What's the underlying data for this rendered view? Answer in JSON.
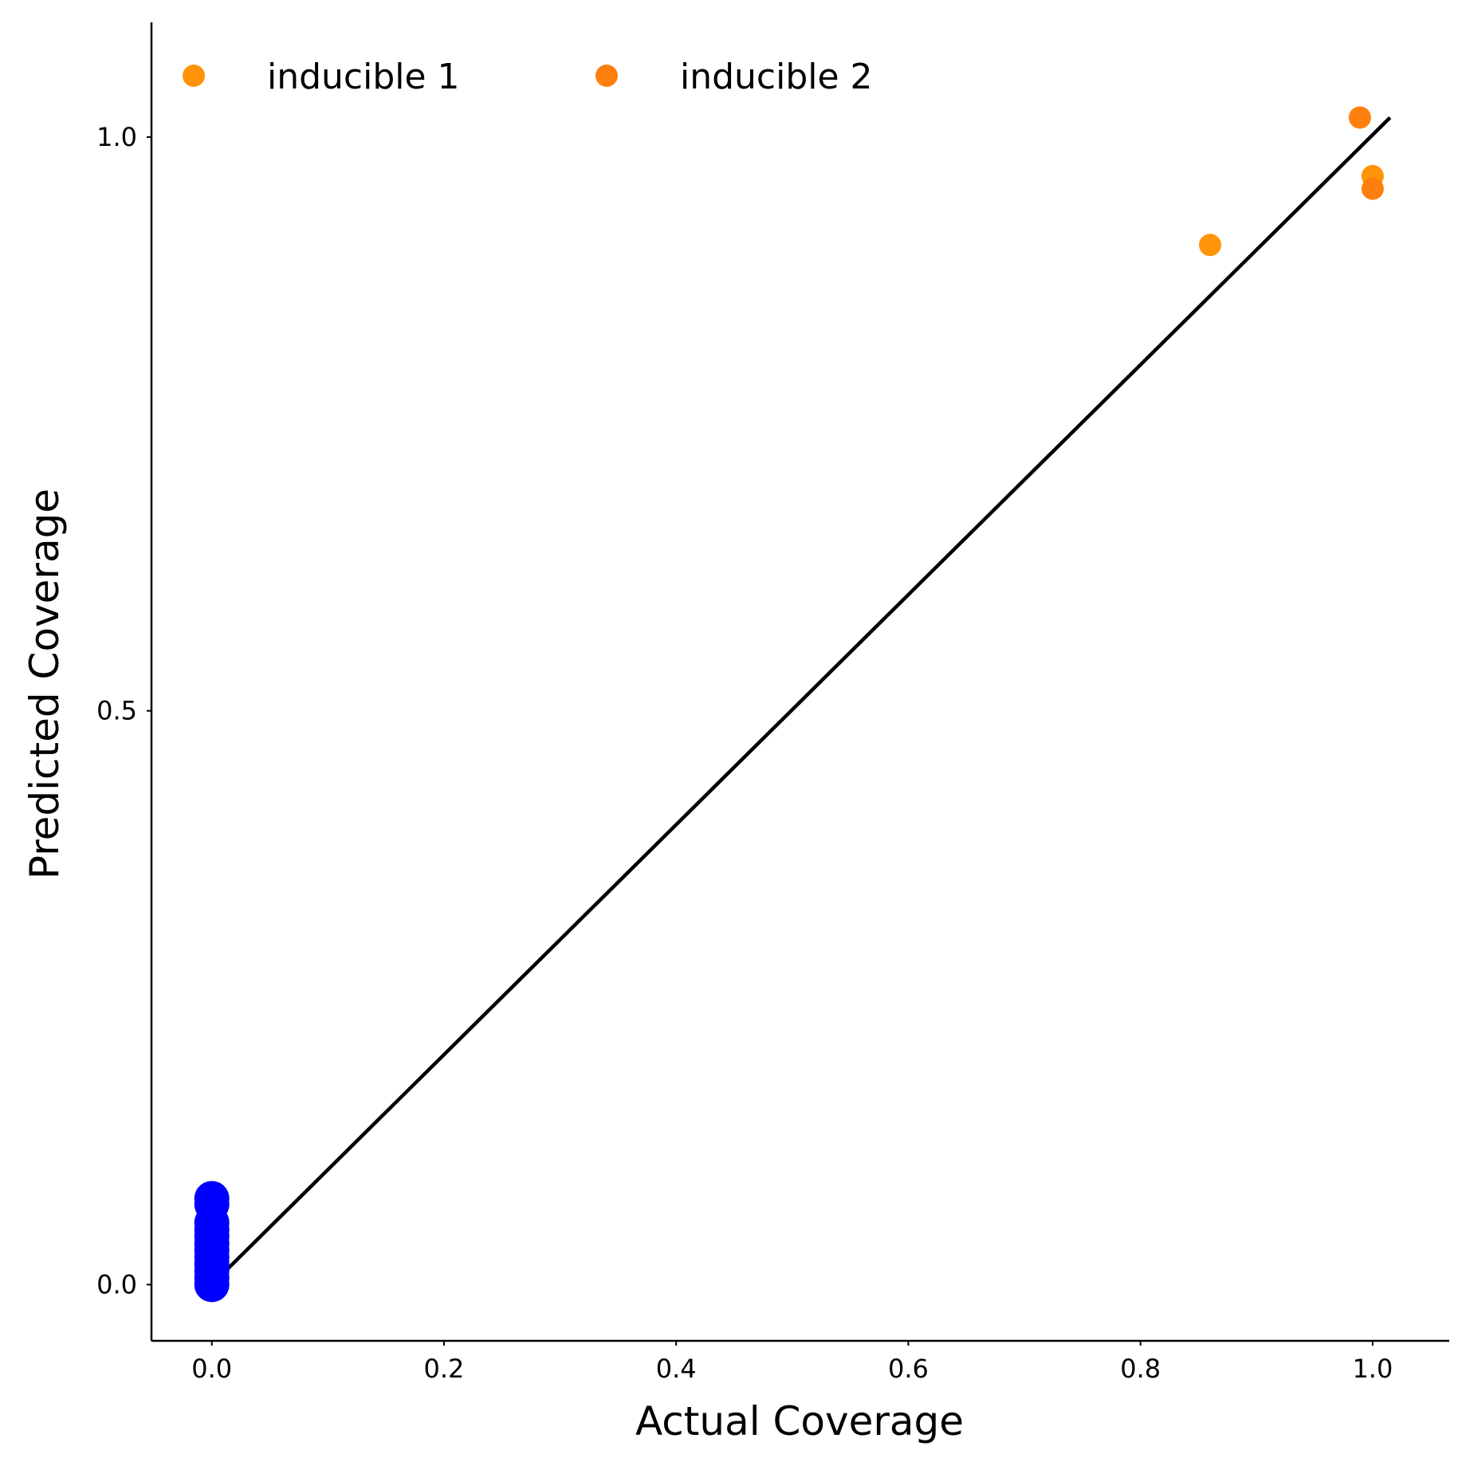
{
  "chart_data": {
    "type": "scatter",
    "title": "",
    "xlabel": "Actual Coverage",
    "ylabel": "Predicted Coverage",
    "xlim": [
      -0.052,
      1.066
    ],
    "ylim": [
      -0.049,
      1.1
    ],
    "xticks": [
      {
        "value": 0.0,
        "label": "0.0"
      },
      {
        "value": 0.2,
        "label": "0.2"
      },
      {
        "value": 0.4,
        "label": "0.4"
      },
      {
        "value": 0.6,
        "label": "0.6"
      },
      {
        "value": 0.8,
        "label": "0.8"
      },
      {
        "value": 1.0,
        "label": "1.0"
      }
    ],
    "yticks": [
      {
        "value": 0.0,
        "label": "0.0"
      },
      {
        "value": 0.5,
        "label": "0.5"
      },
      {
        "value": 1.0,
        "label": "1.0"
      }
    ],
    "grid": false,
    "legend_position": "top-left",
    "identity_line": {
      "from": [
        0.0,
        0.0
      ],
      "to": [
        1.015,
        1.017
      ],
      "color": "#000000"
    },
    "series": [
      {
        "name": "inducible 1",
        "color": "#ff9408",
        "marker_size": 14,
        "in_legend": true,
        "points": [
          [
            0.86,
            0.906
          ],
          [
            1.0,
            0.966
          ]
        ]
      },
      {
        "name": "inducible 2",
        "color": "#ff7f0e",
        "marker_size": 14,
        "in_legend": true,
        "points": [
          [
            0.989,
            1.017
          ],
          [
            1.0,
            0.955
          ]
        ]
      },
      {
        "name": "",
        "color": "#0000ff",
        "marker_size": 22,
        "in_legend": false,
        "points": [
          [
            0.0,
            0.0
          ],
          [
            0.0,
            0.006
          ],
          [
            0.0,
            0.012
          ],
          [
            0.0,
            0.018
          ],
          [
            0.0,
            0.024
          ],
          [
            0.0,
            0.03
          ],
          [
            0.0,
            0.036
          ],
          [
            0.0,
            0.042
          ],
          [
            0.0,
            0.048
          ],
          [
            0.0,
            0.054
          ],
          [
            0.0,
            0.07
          ],
          [
            0.0,
            0.075
          ]
        ]
      }
    ]
  }
}
